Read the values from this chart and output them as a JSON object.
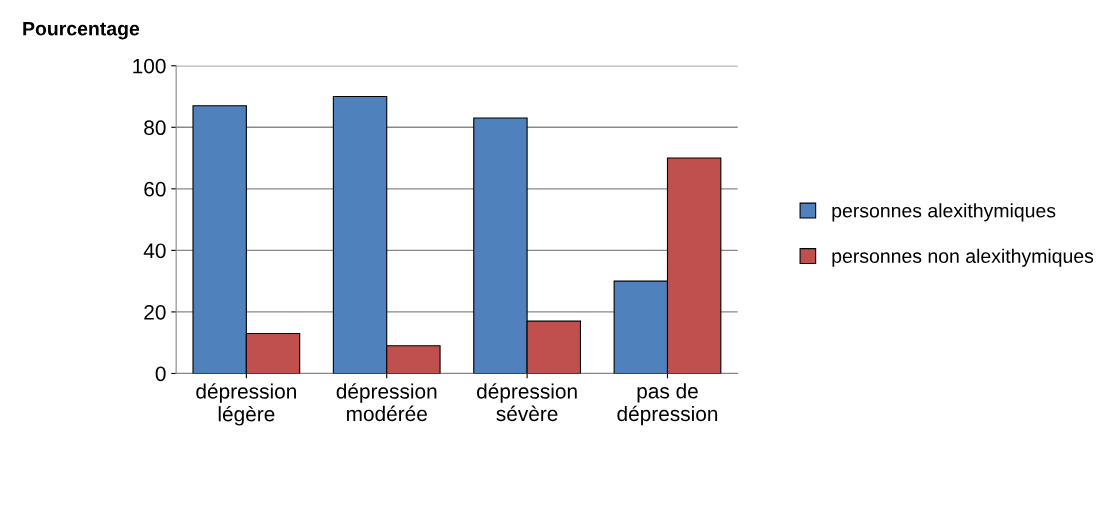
{
  "chart_data": {
    "type": "bar",
    "ylabel": "Pourcentage",
    "categories": [
      "dépression\nlégère",
      "dépression\nmodérée",
      "dépression\nsévère",
      "pas de\ndépression"
    ],
    "series": [
      {
        "name": "personnes alexithymiques",
        "color": "#4f81bd",
        "values": [
          87,
          90,
          83,
          30
        ]
      },
      {
        "name": "personnes non alexithymiques",
        "color": "#c0504d",
        "values": [
          13,
          9,
          17,
          70
        ]
      }
    ],
    "ylim": [
      0,
      100
    ],
    "yticks": [
      0,
      20,
      40,
      60,
      80,
      100
    ],
    "grid": "y",
    "legend": "right"
  }
}
